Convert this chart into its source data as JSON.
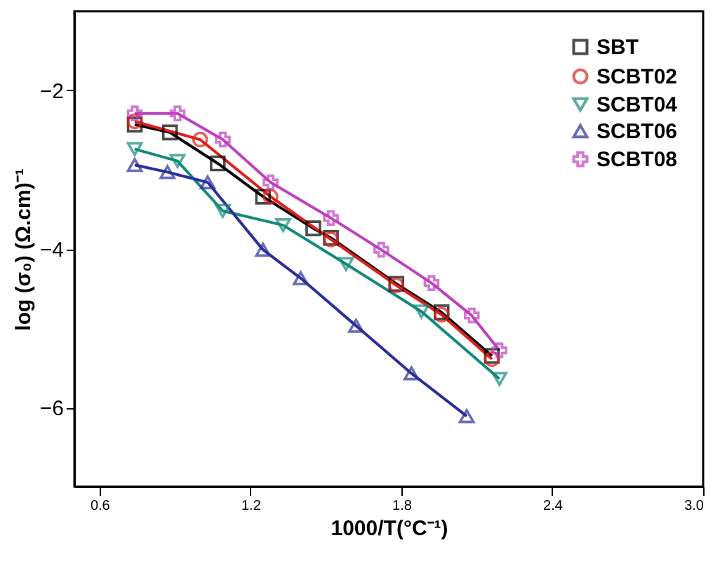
{
  "chart_data": {
    "type": "line",
    "xlabel": "1000/T(°C⁻¹)",
    "ylabel": "log (σ₀) (Ω.cm)⁻¹",
    "xlim": [
      0.5,
      3.0
    ],
    "xticks": [
      0.6,
      1.2,
      1.8,
      2.4,
      {
        "value": 3,
        "label": "3.0"
      }
    ],
    "ylim": [
      -7,
      -1
    ],
    "yticks": [
      -2,
      -4,
      -6
    ],
    "grid": false,
    "legend": "top right",
    "line_style": "solid",
    "series": [
      {
        "name": "SBT",
        "color": "#000000",
        "marker": "square",
        "x": [
          0.74,
          0.88,
          1.07,
          1.25,
          1.45,
          1.52,
          1.78,
          1.96,
          2.16
        ],
        "values": [
          -2.43,
          -2.53,
          -2.92,
          -3.34,
          -3.74,
          -3.86,
          -4.44,
          -4.8,
          -5.35
        ]
      },
      {
        "name": "SCBT02",
        "color": "#e0201b",
        "marker": "circle",
        "x": [
          0.74,
          1.0,
          1.28,
          1.52,
          1.78,
          1.96,
          2.16
        ],
        "values": [
          -2.39,
          -2.62,
          -3.34,
          -3.88,
          -4.46,
          -4.83,
          -5.39
        ]
      },
      {
        "name": "SCBT04",
        "color": "#128a7a",
        "marker": "triangle-down",
        "x": [
          0.74,
          0.91,
          1.09,
          1.33,
          1.58,
          1.88,
          2.19
        ],
        "values": [
          -2.74,
          -2.89,
          -3.52,
          -3.7,
          -4.19,
          -4.79,
          -5.64
        ]
      },
      {
        "name": "SCBT06",
        "color": "#2a2f9c",
        "marker": "triangle-up",
        "x": [
          0.74,
          0.87,
          1.03,
          1.25,
          1.4,
          1.62,
          1.84,
          2.06
        ],
        "values": [
          -2.94,
          -3.03,
          -3.16,
          -4.01,
          -4.37,
          -4.97,
          -5.57,
          -6.11
        ]
      },
      {
        "name": "SCBT08",
        "color": "#c040c0",
        "marker": "cross",
        "x": [
          0.74,
          0.91,
          1.09,
          1.28,
          1.52,
          1.72,
          1.92,
          2.08,
          2.19
        ],
        "values": [
          -2.29,
          -2.29,
          -2.62,
          -3.16,
          -3.61,
          -4.01,
          -4.43,
          -4.84,
          -5.28
        ]
      }
    ]
  }
}
